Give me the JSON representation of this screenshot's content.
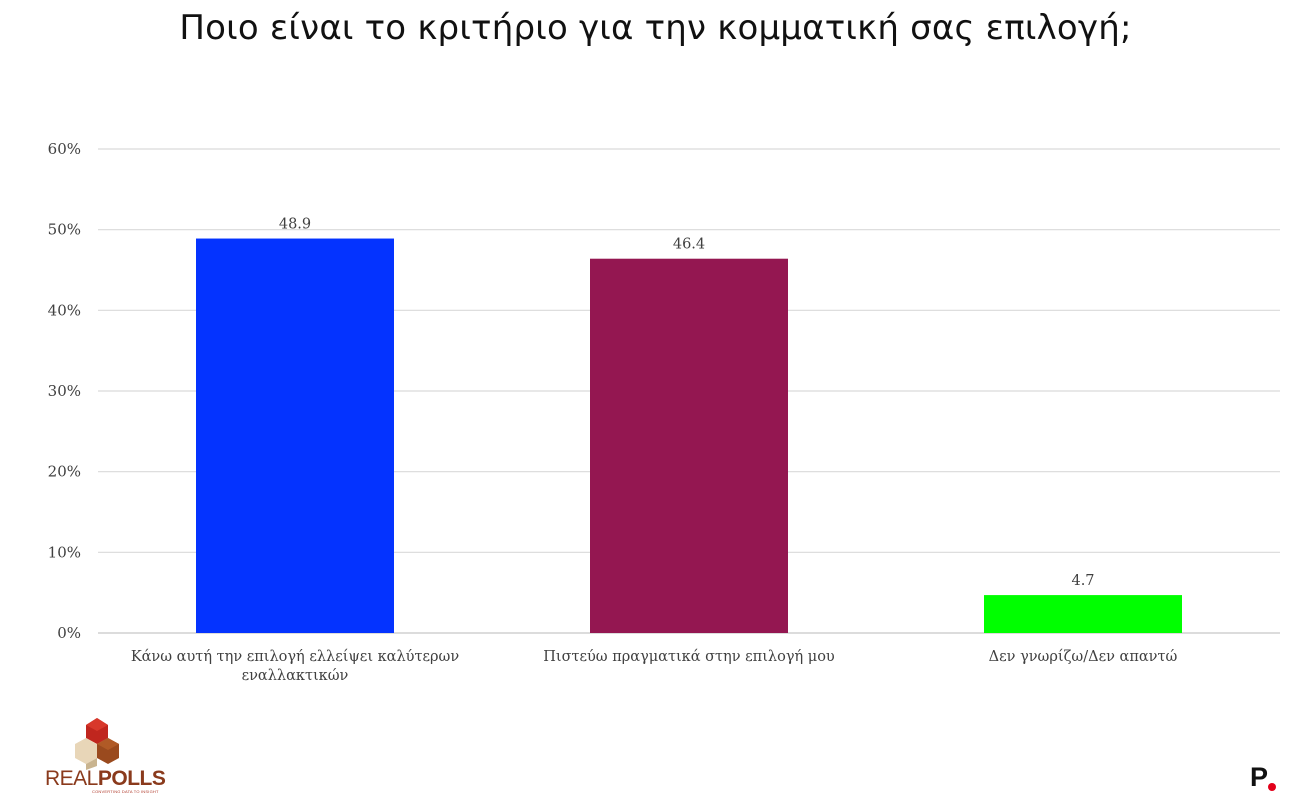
{
  "chart_data": {
    "type": "bar",
    "title": "Ποιο είναι το κριτήριο για την κομματική σας επιλογή;",
    "categories": [
      [
        "Κάνω αυτή την επιλογή ελλείψει καλύτερων",
        "εναλλακτικών"
      ],
      [
        "Πιστεύω πραγματικά στην επιλογή μου"
      ],
      [
        "Δεν γνωρίζω/Δεν απαντώ"
      ]
    ],
    "values": [
      48.9,
      46.4,
      4.7
    ],
    "data_labels": [
      "48.9",
      "46.4",
      "4.7"
    ],
    "colors": [
      "#0433ff",
      "#941751",
      "#00ff00"
    ],
    "ylim": [
      0,
      60
    ],
    "yticks": [
      0,
      10,
      20,
      30,
      40,
      50,
      60
    ],
    "ytick_labels": [
      "0%",
      "10%",
      "20%",
      "30%",
      "40%",
      "50%",
      "60%"
    ],
    "xlabel": "",
    "ylabel": "",
    "grid": true,
    "legend": false
  },
  "logos": {
    "realpolls_part1": "REAL",
    "realpolls_part2": "POLLS",
    "realpolls_tagline": "CONVERTING DATA TO INSIGHT",
    "p_mark": "P"
  }
}
